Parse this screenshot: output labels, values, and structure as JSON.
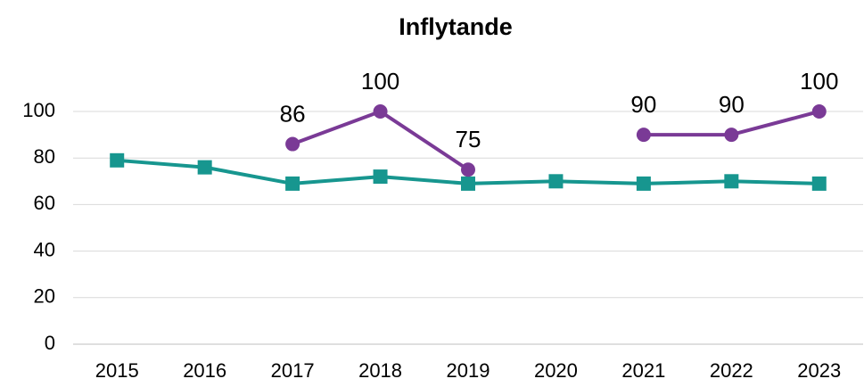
{
  "chart_data": {
    "type": "line",
    "title": "Inflytande",
    "categories": [
      "2015",
      "2016",
      "2017",
      "2018",
      "2019",
      "2020",
      "2021",
      "2022",
      "2023"
    ],
    "series": [
      {
        "color": "#17968f",
        "marker": "square",
        "values": [
          79,
          76,
          69,
          72,
          69,
          70,
          69,
          70,
          69
        ]
      },
      {
        "color": "#7a3a96",
        "marker": "circle",
        "data_labels": true,
        "values": [
          null,
          null,
          86,
          100,
          75,
          null,
          90,
          90,
          100
        ]
      }
    ],
    "ylim": [
      0,
      100
    ],
    "yticks": [
      0,
      20,
      40,
      60,
      80,
      100
    ],
    "grid": true
  }
}
